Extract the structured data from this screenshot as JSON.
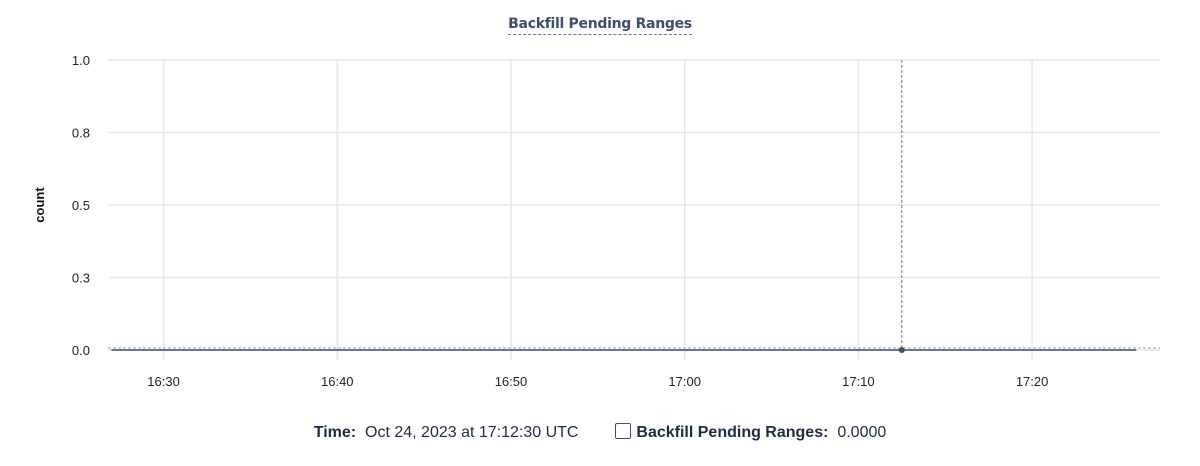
{
  "chart_data": {
    "type": "line",
    "title": "Backfill Pending Ranges",
    "ylabel": "count",
    "xlabel": "",
    "ylim": [
      0,
      1
    ],
    "yticks": [
      {
        "v": 0,
        "label": "0.0"
      },
      {
        "v": 0.25,
        "label": "0.3"
      },
      {
        "v": 0.5,
        "label": "0.5"
      },
      {
        "v": 0.75,
        "label": "0.8"
      },
      {
        "v": 1,
        "label": "1.0"
      }
    ],
    "xlim": [
      "16:26:48",
      "17:26:30"
    ],
    "xticks": [
      "16:30",
      "16:40",
      "16:50",
      "17:00",
      "17:10",
      "17:20"
    ],
    "grid": true,
    "series": [
      {
        "name": "Backfill Pending Ranges",
        "color": "#3d4f6b",
        "x": [
          "16:27:00",
          "16:40:00",
          "16:50:00",
          "17:00:00",
          "17:10:00",
          "17:12:30",
          "17:20:00",
          "17:26:00"
        ],
        "y": [
          0,
          0,
          0,
          0,
          0,
          0,
          0,
          0
        ]
      }
    ],
    "cursor": {
      "x": "17:12:30",
      "y": 0
    }
  },
  "legend": {
    "time_label": "Time:",
    "time_value": "Oct 24, 2023 at 17:12:30 UTC",
    "series_label": "Backfill Pending Ranges:",
    "series_value": "0.0000"
  }
}
